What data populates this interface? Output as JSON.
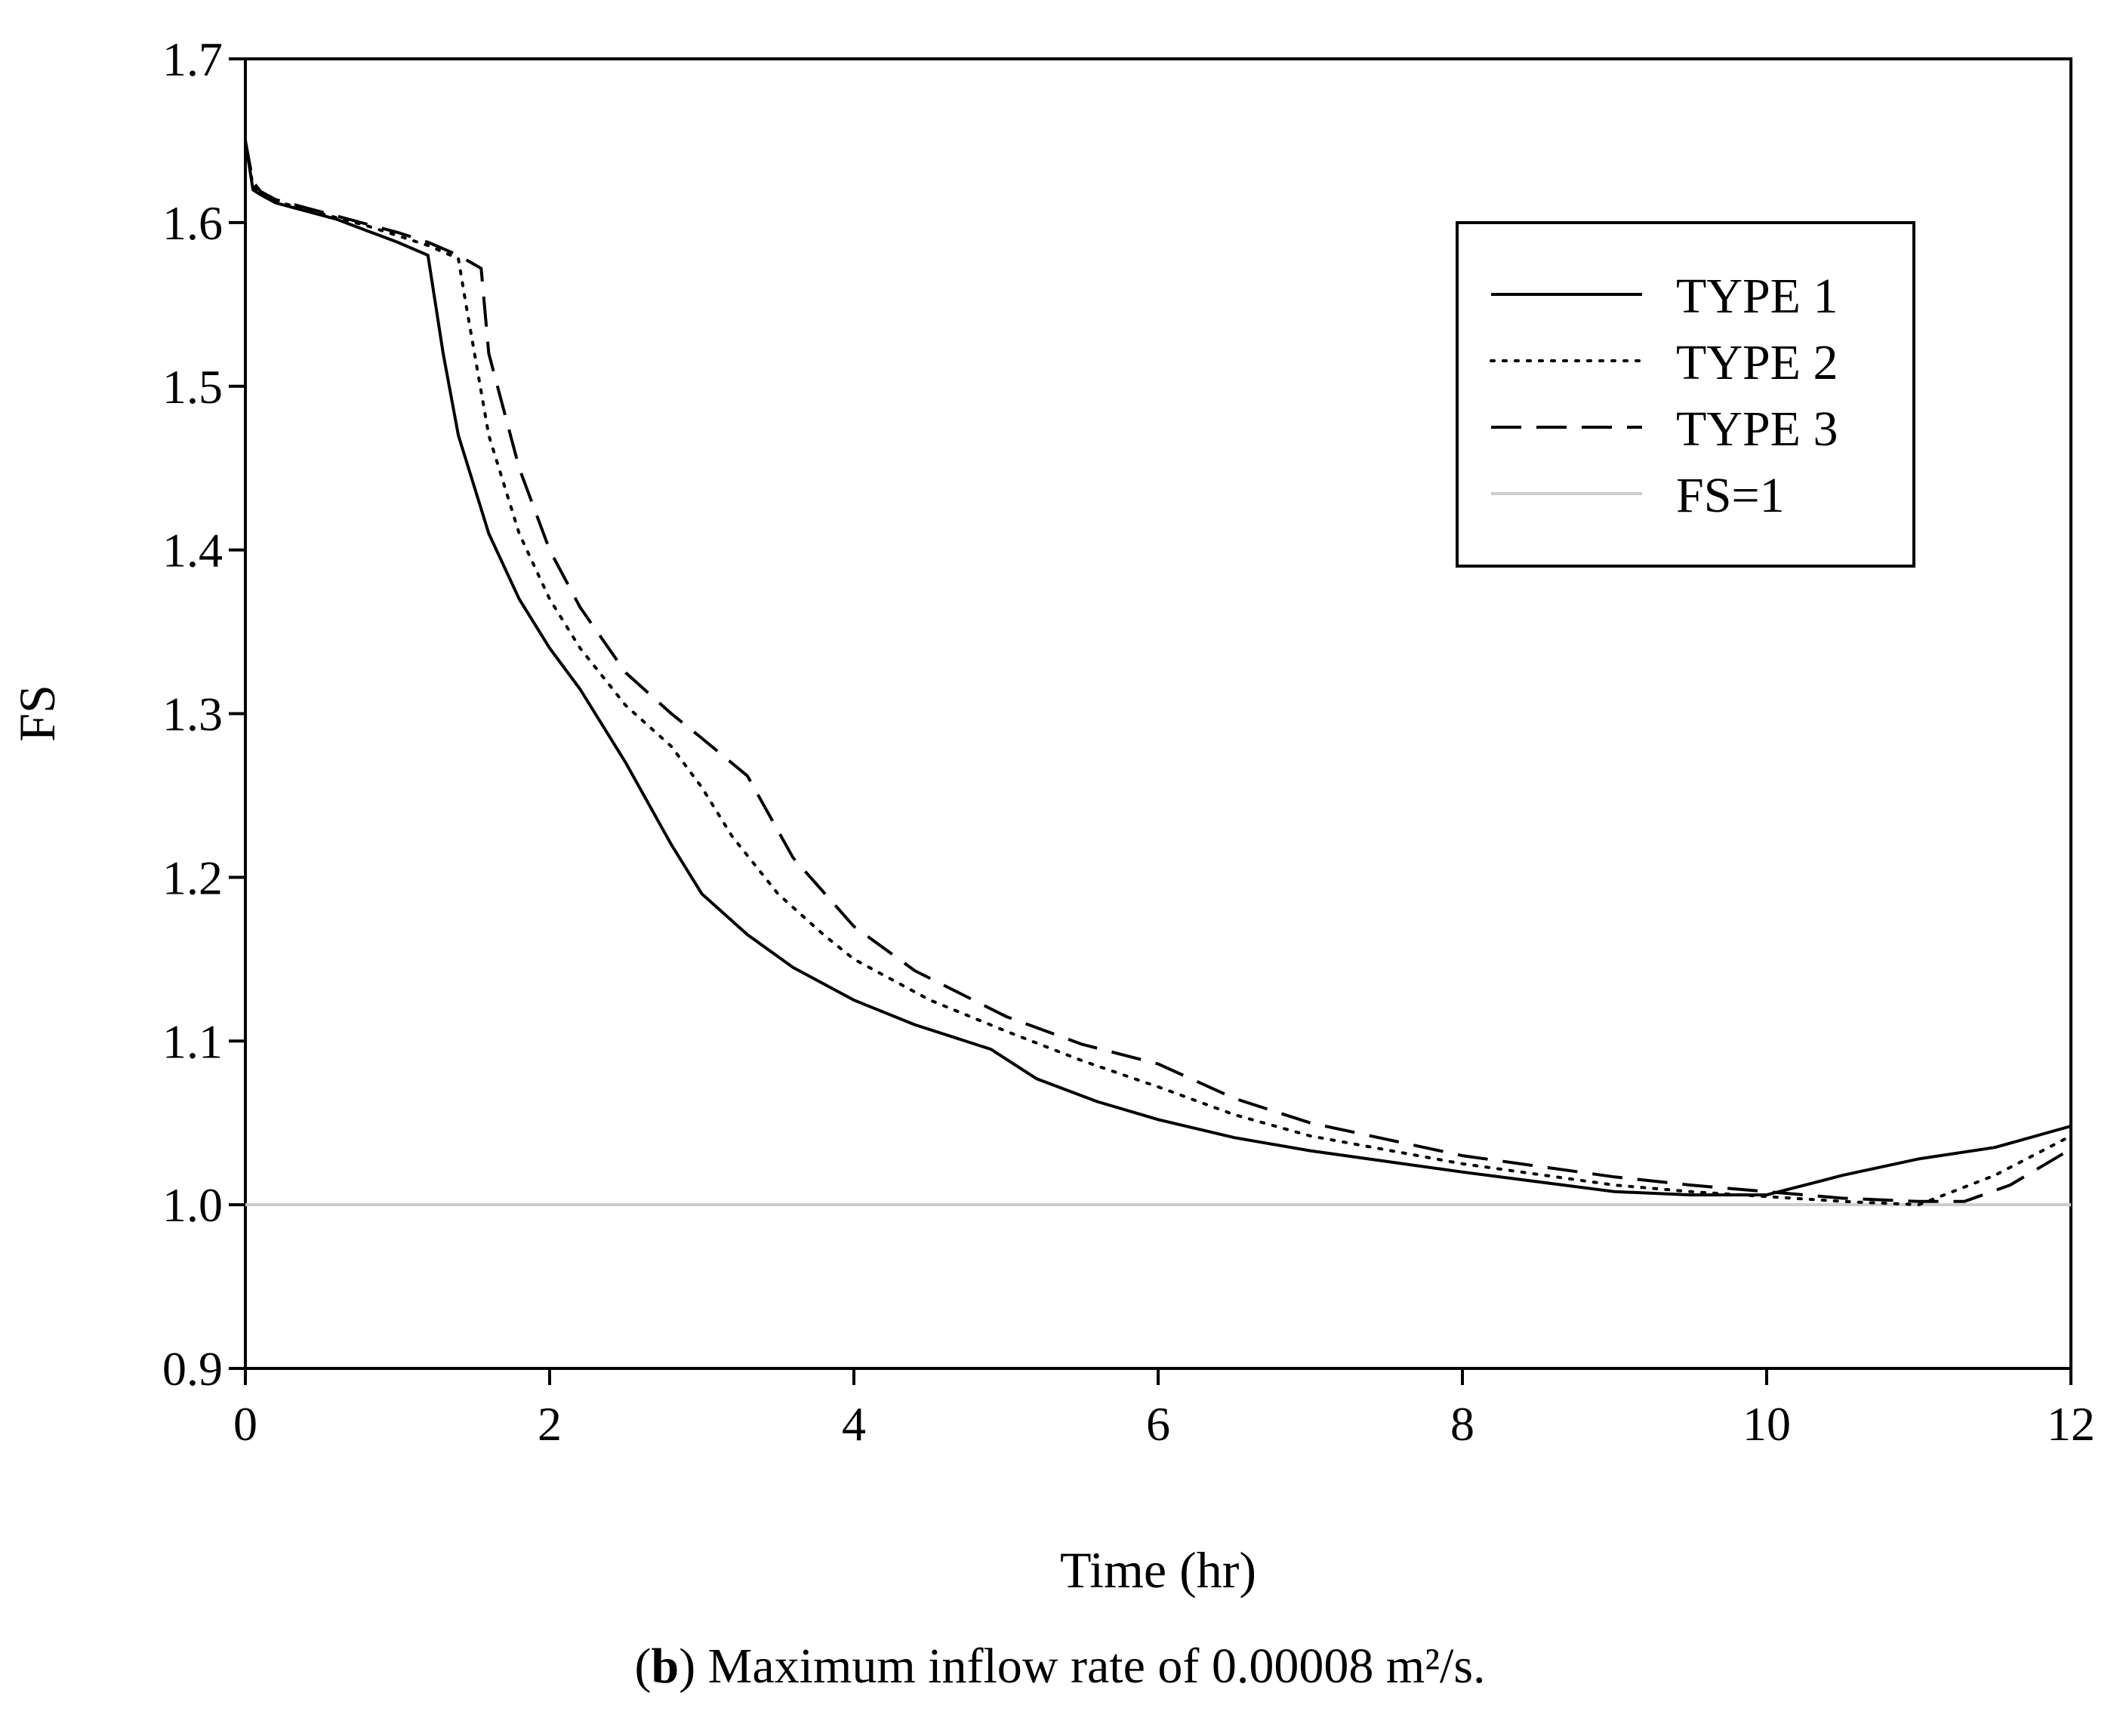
{
  "chart_data": {
    "type": "line",
    "title": "",
    "xlabel": "Time (hr)",
    "ylabel": "FS",
    "xlim": [
      0,
      12
    ],
    "ylim": [
      0.9,
      1.7
    ],
    "xticks": [
      "0",
      "2",
      "4",
      "6",
      "8",
      "10",
      "12"
    ],
    "xtick_values": [
      0,
      2,
      4,
      6,
      8,
      10,
      12
    ],
    "yticks": [
      "0.9",
      "1.0",
      "1.1",
      "1.2",
      "1.3",
      "1.4",
      "1.5",
      "1.6",
      "1.7"
    ],
    "ytick_values": [
      0.9,
      1.0,
      1.1,
      1.2,
      1.3,
      1.4,
      1.5,
      1.6,
      1.7
    ],
    "grid": false,
    "legend_position": "top-right",
    "series": [
      {
        "name": "TYPE 1",
        "style": "solid",
        "color": "#000000",
        "x": [
          0,
          0.05,
          0.1,
          0.2,
          0.4,
          0.6,
          0.8,
          1.0,
          1.2,
          1.3,
          1.4,
          1.5,
          1.6,
          1.8,
          2.0,
          2.2,
          2.5,
          2.8,
          3.0,
          3.3,
          3.6,
          4.0,
          4.4,
          4.9,
          5.2,
          5.6,
          6.0,
          6.5,
          7.0,
          8.0,
          9.0,
          9.5,
          10.0,
          10.5,
          11.0,
          11.5,
          12.0
        ],
        "y": [
          1.65,
          1.62,
          1.617,
          1.612,
          1.607,
          1.602,
          1.595,
          1.588,
          1.58,
          1.52,
          1.47,
          1.44,
          1.41,
          1.37,
          1.34,
          1.315,
          1.27,
          1.22,
          1.19,
          1.165,
          1.145,
          1.125,
          1.11,
          1.095,
          1.077,
          1.063,
          1.052,
          1.041,
          1.033,
          1.02,
          1.008,
          1.006,
          1.006,
          1.018,
          1.028,
          1.035,
          1.048
        ]
      },
      {
        "name": "TYPE 2",
        "style": "dotted",
        "color": "#000000",
        "x": [
          0,
          0.05,
          0.1,
          0.2,
          0.4,
          0.6,
          0.8,
          1.0,
          1.2,
          1.4,
          1.45,
          1.6,
          1.8,
          2.0,
          2.2,
          2.5,
          2.8,
          3.0,
          3.2,
          3.5,
          3.8,
          4.0,
          4.5,
          5.0,
          5.5,
          6.0,
          6.5,
          7.0,
          8.0,
          9.0,
          9.5,
          10.0,
          10.5,
          11.0,
          11.5,
          12.0
        ],
        "y": [
          1.65,
          1.622,
          1.618,
          1.613,
          1.608,
          1.603,
          1.598,
          1.592,
          1.586,
          1.578,
          1.55,
          1.47,
          1.41,
          1.37,
          1.34,
          1.305,
          1.28,
          1.255,
          1.225,
          1.19,
          1.165,
          1.15,
          1.125,
          1.106,
          1.088,
          1.072,
          1.055,
          1.042,
          1.025,
          1.012,
          1.008,
          1.005,
          1.002,
          1.0,
          1.018,
          1.042
        ]
      },
      {
        "name": "TYPE 3",
        "style": "dashed",
        "color": "#000000",
        "x": [
          0,
          0.05,
          0.1,
          0.2,
          0.4,
          0.6,
          0.8,
          1.0,
          1.2,
          1.4,
          1.55,
          1.6,
          1.8,
          2.0,
          2.2,
          2.5,
          2.8,
          3.0,
          3.3,
          3.6,
          4.0,
          4.4,
          5.0,
          5.5,
          6.0,
          6.5,
          7.0,
          8.0,
          9.0,
          9.5,
          10.0,
          10.5,
          11.0,
          11.3,
          11.6,
          12.0
        ],
        "y": [
          1.65,
          1.625,
          1.619,
          1.614,
          1.609,
          1.604,
          1.599,
          1.594,
          1.588,
          1.58,
          1.572,
          1.52,
          1.45,
          1.4,
          1.365,
          1.325,
          1.3,
          1.285,
          1.262,
          1.212,
          1.17,
          1.143,
          1.115,
          1.098,
          1.086,
          1.065,
          1.05,
          1.03,
          1.017,
          1.012,
          1.008,
          1.004,
          1.002,
          1.002,
          1.012,
          1.034
        ]
      },
      {
        "name": "FS=1",
        "style": "solid",
        "color": "#cccccc",
        "x": [
          0,
          12
        ],
        "y": [
          1.0,
          1.0
        ]
      }
    ]
  },
  "caption": {
    "bold_part": "b",
    "text_before": "(",
    "text_after": ") Maximum inflow rate of 0.00008 m²/s."
  }
}
